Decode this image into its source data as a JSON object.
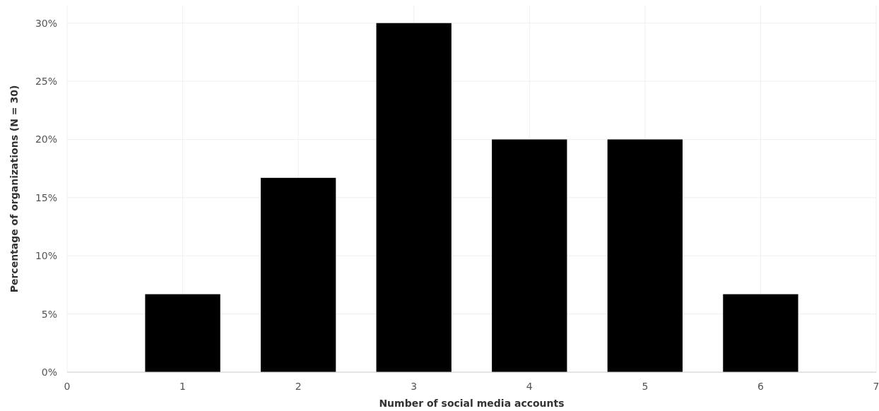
{
  "chart_data": {
    "type": "bar",
    "xlabel": "Number of social media accounts",
    "ylabel": "Percentage of organizations (N = 30)",
    "x": [
      1,
      2,
      3,
      4,
      5,
      6
    ],
    "values": [
      6.7,
      16.7,
      30,
      20,
      20,
      6.7
    ],
    "color": "#000000",
    "xlim": [
      0,
      7
    ],
    "xticks": [
      0,
      1,
      2,
      3,
      4,
      5,
      6,
      7
    ],
    "ylim": [
      0,
      31.5
    ],
    "yticks": [
      {
        "value": 0,
        "label": "0%"
      },
      {
        "value": 5,
        "label": "5%"
      },
      {
        "value": 10,
        "label": "10%"
      },
      {
        "value": 15,
        "label": "15%"
      },
      {
        "value": 20,
        "label": "20%"
      },
      {
        "value": 25,
        "label": "25%"
      },
      {
        "value": 30,
        "label": "30%"
      }
    ],
    "grid": true
  }
}
